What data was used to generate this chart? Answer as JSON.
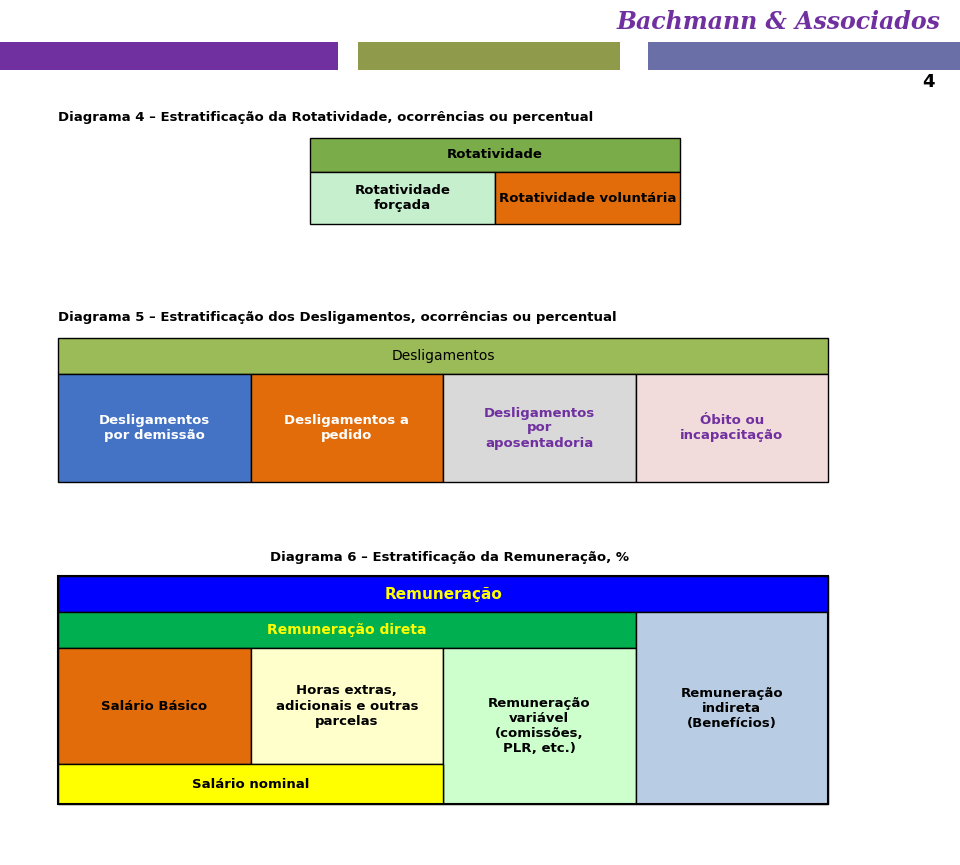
{
  "bg_color": "#ffffff",
  "title_color": "#7030a0",
  "header_bar_colors": [
    "#7030a0",
    "#8f9a4b",
    "#6b6fa8"
  ],
  "page_number": "4",
  "company_name": "Bachmann & Associados",
  "diag4_title": "Diagrama 4 – Estratificação da Rotatividade, ocorrências ou percentual",
  "diag4_top_label": "Rotatividade",
  "diag4_top_color": "#7aad4a",
  "diag4_left_label": "Rotatividade\nforçada",
  "diag4_left_color": "#c6efce",
  "diag4_right_label": "Rotatividade voluntária",
  "diag4_right_color": "#e26b0a",
  "diag5_title": "Diagrama 5 – Estratificação dos Desligamentos, ocorrências ou percentual",
  "diag5_top_label": "Desligamentos",
  "diag5_top_color": "#9bbb59",
  "diag5_cells": [
    {
      "label": "Desligamentos\npor demissão",
      "color": "#4472c4",
      "text_color": "#ffffff"
    },
    {
      "label": "Desligamentos a\npedido",
      "color": "#e26b0a",
      "text_color": "#ffffff"
    },
    {
      "label": "Desligamentos\npor\naposentadoria",
      "color": "#d9d9d9",
      "text_color": "#7030a0"
    },
    {
      "label": "Óbito ou\nincapacitação",
      "color": "#f2dcdb",
      "text_color": "#7030a0"
    }
  ],
  "diag6_title": "Diagrama 6 – Estratificação da Remuneração, %",
  "diag6_rem_label": "Remuneração",
  "diag6_rem_color": "#0000ff",
  "diag6_rem_text_color": "#ffff00",
  "diag6_dir_label": "Remuneração direta",
  "diag6_dir_color": "#00b050",
  "diag6_dir_text_color": "#ffff00",
  "diag6_sal_bas_label": "Salário Básico",
  "diag6_sal_bas_color": "#e26b0a",
  "diag6_horas_label": "Horas extras,\nadicionais e outras\nparcelas",
  "diag6_horas_color": "#ffffcc",
  "diag6_rem_var_label": "Remuneração\nvariável\n(comissões,\nPLR, etc.)",
  "diag6_rem_var_color": "#ccffcc",
  "diag6_rem_ind_label": "Remuneração\nindireta\n(Benefícios)",
  "diag6_rem_ind_color": "#b8cce4",
  "diag6_sal_nom_label": "Salário nominal",
  "diag6_sal_nom_color": "#ffff00"
}
